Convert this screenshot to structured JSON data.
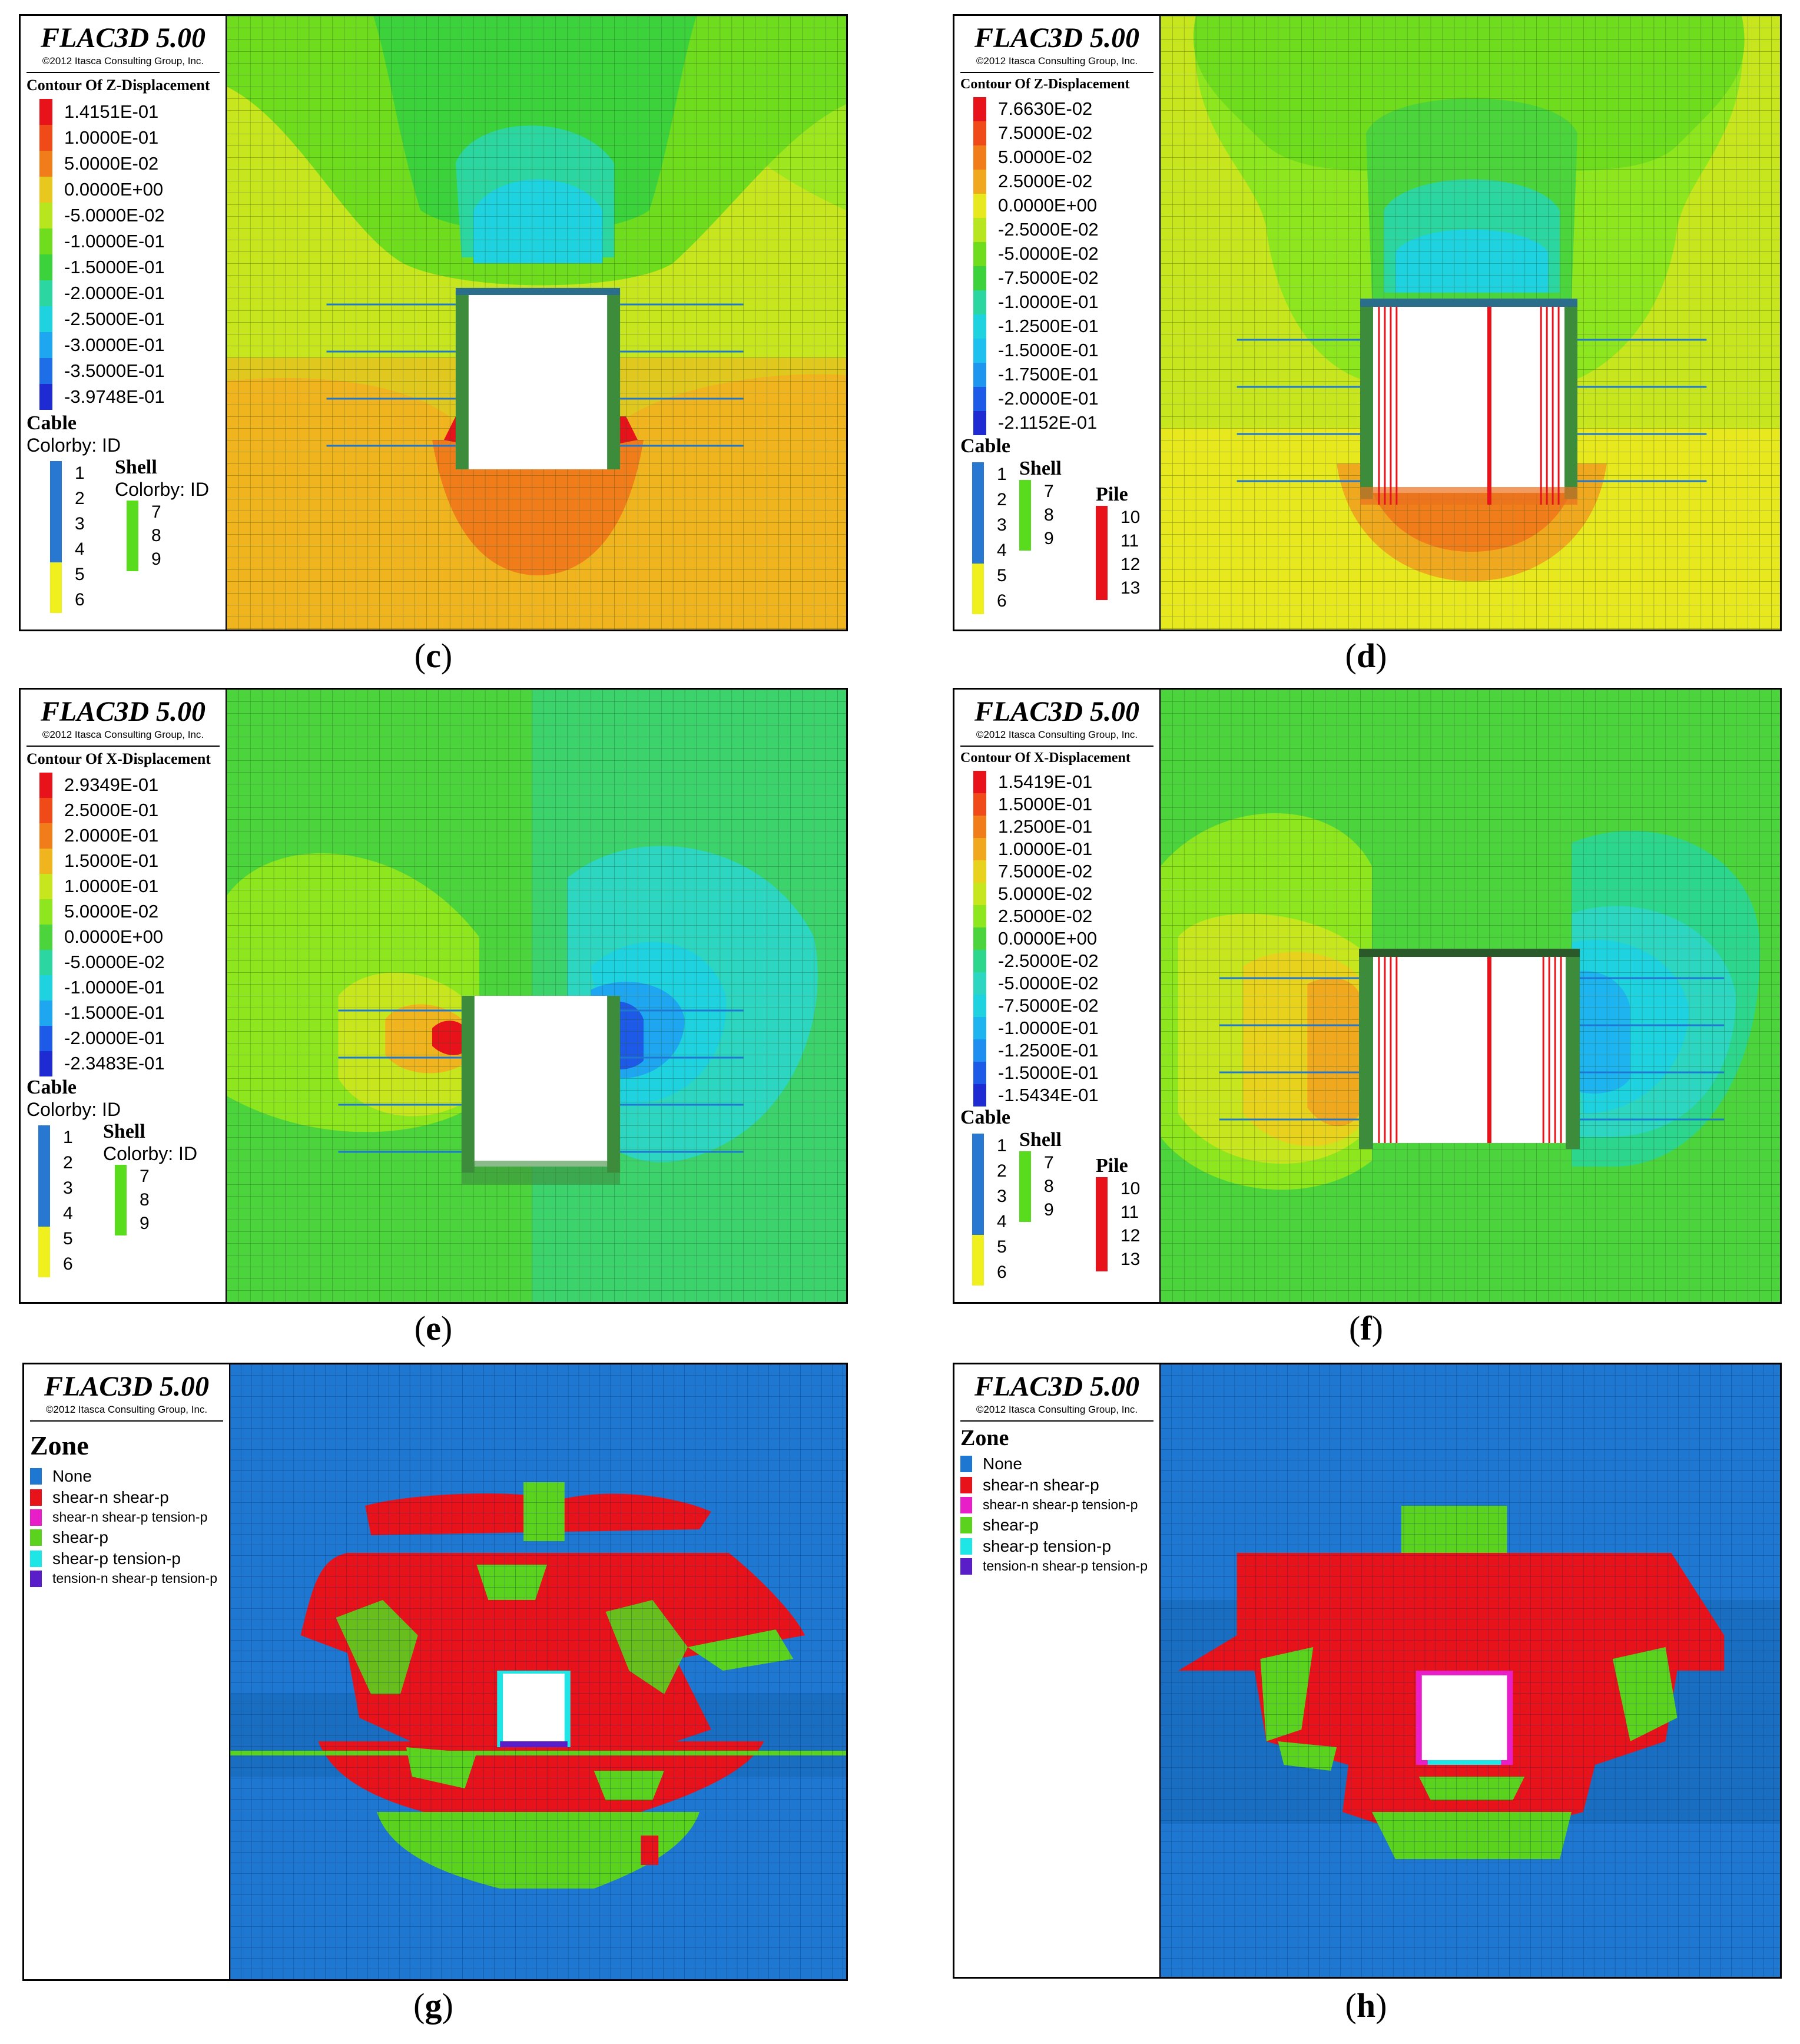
{
  "brand": "FLAC3D 5.00",
  "copyright": "©2012 Itasca Consulting Group, Inc.",
  "panels": {
    "c": {
      "caption": "c",
      "contour_title": "Contour Of Z-Displacement",
      "contour_levels": [
        "1.4151E-01",
        "1.0000E-01",
        "5.0000E-02",
        "0.0000E+00",
        "-5.0000E-02",
        "-1.0000E-01",
        "-1.5000E-01",
        "-2.0000E-01",
        "-2.5000E-01",
        "-3.0000E-01",
        "-3.5000E-01",
        "-3.9748E-01"
      ],
      "cable_title": "Cable",
      "cable_sub": "Colorby: ID",
      "cable_ids": [
        "1",
        "2",
        "3",
        "4",
        "5",
        "6"
      ],
      "shell_title": "Shell",
      "shell_sub": "Colorby: ID",
      "shell_ids": [
        "7",
        "8",
        "9"
      ]
    },
    "d": {
      "caption": "d",
      "contour_title": "Contour Of Z-Displacement",
      "contour_levels": [
        "7.6630E-02",
        "7.5000E-02",
        "5.0000E-02",
        "2.5000E-02",
        "0.0000E+00",
        "-2.5000E-02",
        "-5.0000E-02",
        "-7.5000E-02",
        "-1.0000E-01",
        "-1.2500E-01",
        "-1.5000E-01",
        "-1.7500E-01",
        "-2.0000E-01",
        "-2.1152E-01"
      ],
      "cable_title": "Cable",
      "cable_ids": [
        "1",
        "2",
        "3",
        "4",
        "5",
        "6"
      ],
      "shell_title": "Shell",
      "shell_ids": [
        "7",
        "8",
        "9"
      ],
      "pile_title": "Pile",
      "pile_ids": [
        "10",
        "11",
        "12",
        "13"
      ]
    },
    "e": {
      "caption": "e",
      "contour_title": "Contour Of X-Displacement",
      "contour_levels": [
        "2.9349E-01",
        "2.5000E-01",
        "2.0000E-01",
        "1.5000E-01",
        "1.0000E-01",
        "5.0000E-02",
        "0.0000E+00",
        "-5.0000E-02",
        "-1.0000E-01",
        "-1.5000E-01",
        "-2.0000E-01",
        "-2.3483E-01"
      ],
      "cable_title": "Cable",
      "cable_sub": "Colorby: ID",
      "cable_ids": [
        "1",
        "2",
        "3",
        "4",
        "5",
        "6"
      ],
      "shell_title": "Shell",
      "shell_sub": "Colorby: ID",
      "shell_ids": [
        "7",
        "8",
        "9"
      ]
    },
    "f": {
      "caption": "f",
      "contour_title": "Contour Of X-Displacement",
      "contour_levels": [
        "1.5419E-01",
        "1.5000E-01",
        "1.2500E-01",
        "1.0000E-01",
        "7.5000E-02",
        "5.0000E-02",
        "2.5000E-02",
        "0.0000E+00",
        "-2.5000E-02",
        "-5.0000E-02",
        "-7.5000E-02",
        "-1.0000E-01",
        "-1.2500E-01",
        "-1.5000E-01",
        "-1.5434E-01"
      ],
      "cable_title": "Cable",
      "cable_ids": [
        "1",
        "2",
        "3",
        "4",
        "5",
        "6"
      ],
      "shell_title": "Shell",
      "shell_ids": [
        "7",
        "8",
        "9"
      ],
      "pile_title": "Pile",
      "pile_ids": [
        "10",
        "11",
        "12",
        "13"
      ]
    },
    "g": {
      "caption": "g",
      "zone_title": "Zone",
      "zone_items": [
        "None",
        "shear-n shear-p",
        "shear-n shear-p tension-p",
        "shear-p",
        "shear-p tension-p",
        "tension-n shear-p tension-p"
      ]
    },
    "h": {
      "caption": "h",
      "zone_title": "Zone",
      "zone_items": [
        "None",
        "shear-n shear-p",
        "shear-n shear-p tension-p",
        "shear-p",
        "shear-p tension-p",
        "tension-n shear-p tension-p"
      ]
    }
  },
  "colors": {
    "contour_c": [
      "#e8121b",
      "#f04a18",
      "#f07d1a",
      "#e8c81e",
      "#b8e61e",
      "#6fdc1e",
      "#3cd23c",
      "#2cd6a0",
      "#1ed2e0",
      "#1ea6f0",
      "#1e6ee8",
      "#1e2ad2"
    ],
    "contour_d": [
      "#e8121b",
      "#f04a18",
      "#f07d1a",
      "#f0a81e",
      "#e8e81e",
      "#b8e61e",
      "#6fdc1e",
      "#3cd23c",
      "#2cd6a0",
      "#1ed2e0",
      "#1ec0f0",
      "#1e96f0",
      "#1e5ae8",
      "#1e2ad2"
    ],
    "contour_e": [
      "#e8121b",
      "#f04a18",
      "#f07d1a",
      "#f0b41e",
      "#c8e61e",
      "#8ee61e",
      "#4cd43c",
      "#2cd6a0",
      "#1ed2e0",
      "#1ea6f0",
      "#1e5ae8",
      "#1e2ad2"
    ],
    "contour_f": [
      "#e8121b",
      "#f04a18",
      "#f07d1a",
      "#f0a81e",
      "#e8d21e",
      "#c8e61e",
      "#8ee61e",
      "#4cd43c",
      "#2cd68c",
      "#2cd6c0",
      "#1ed2e0",
      "#1eb4f0",
      "#1e8ef0",
      "#1e5ae8",
      "#1e2ad2"
    ],
    "zone": [
      "#1e78d2",
      "#e8121b",
      "#e81ec8",
      "#5ad21e",
      "#1ee6e6",
      "#5a1ec8"
    ],
    "cable": [
      "#2878d2",
      "#2878d2",
      "#2878d2",
      "#2878d2",
      "#f0f01e",
      "#f0f01e"
    ],
    "shell": "#5adc1e",
    "pile": "#e8121b"
  }
}
